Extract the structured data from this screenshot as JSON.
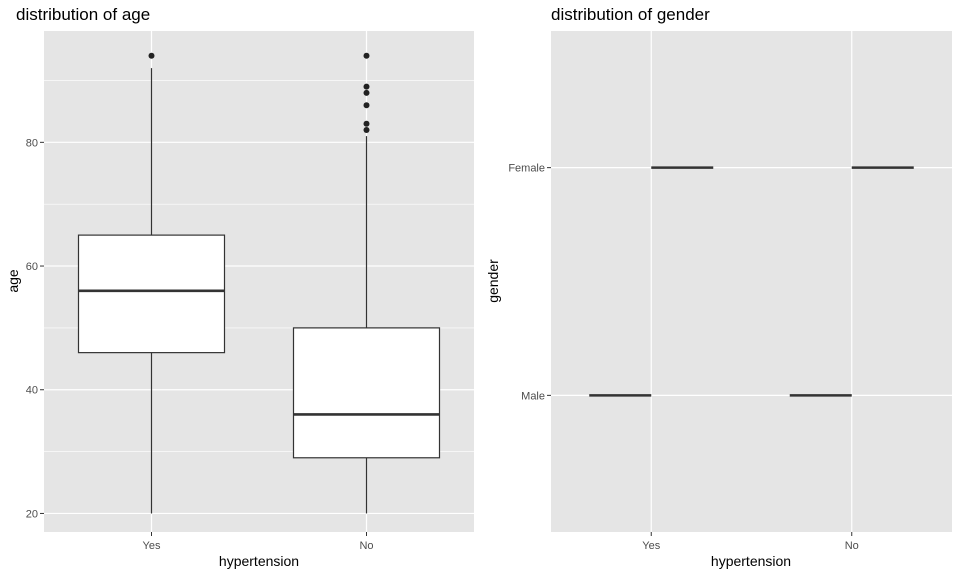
{
  "chart_data": [
    {
      "type": "box",
      "title": "distribution of age",
      "xlabel": "hypertension",
      "ylabel": "age",
      "categories": [
        "Yes",
        "No"
      ],
      "ylim": [
        17,
        98
      ],
      "yticks": [
        20,
        40,
        60,
        80
      ],
      "boxes": [
        {
          "category": "Yes",
          "whisker_low": 20,
          "q1": 46,
          "median": 56,
          "q3": 65,
          "whisker_high": 92,
          "outliers": [
            94
          ]
        },
        {
          "category": "No",
          "whisker_low": 20,
          "q1": 29,
          "median": 36,
          "q3": 50,
          "whisker_high": 81,
          "outliers": [
            82,
            83,
            86,
            88,
            89,
            94
          ]
        }
      ],
      "grid": true
    },
    {
      "type": "box",
      "title": "distribution of gender",
      "xlabel": "hypertension",
      "ylabel": "gender",
      "categories": [
        "Yes",
        "No"
      ],
      "y_levels": [
        "Male",
        "Female"
      ],
      "segments": [
        {
          "category": "Yes",
          "level": "Male"
        },
        {
          "category": "Yes",
          "level": "Female"
        },
        {
          "category": "No",
          "level": "Male"
        },
        {
          "category": "No",
          "level": "Female"
        }
      ],
      "grid": true
    }
  ],
  "colors": {
    "panel_bg": "#e5e5e5",
    "grid": "#ffffff",
    "box_fill": "#ffffff",
    "box_stroke": "#333333",
    "point": "#222222"
  }
}
